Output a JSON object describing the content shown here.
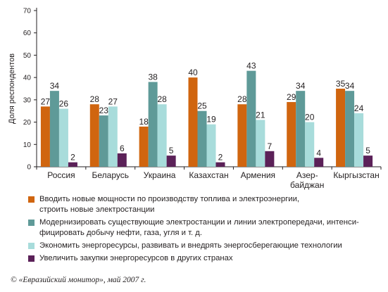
{
  "chart_data": {
    "type": "bar",
    "ylabel": "Доля респондентов",
    "ylim": [
      0,
      70
    ],
    "yticks": [
      0,
      10,
      20,
      30,
      40,
      50,
      60,
      70
    ],
    "grid": false,
    "categories": [
      [
        "Россия"
      ],
      [
        "Беларусь"
      ],
      [
        "Украина"
      ],
      [
        "Казахстан"
      ],
      [
        "Армения"
      ],
      [
        "Азер-",
        "байджан"
      ],
      [
        "Кыргызстан"
      ]
    ],
    "series": [
      {
        "name": "Вводить новые мощности по производству топлива и электроэнергии,\nстроить новые электростанции",
        "color": "#d0650f",
        "values": [
          27,
          28,
          18,
          40,
          28,
          29,
          35
        ]
      },
      {
        "name": "Модернизировать существующие электростанции и линии электропередачи, интенси-\nфицировать добычу нефти, газа, угля и т. д.",
        "color": "#5f9a98",
        "values": [
          34,
          23,
          38,
          25,
          43,
          34,
          34
        ]
      },
      {
        "name": "Экономить энергоресурсы, развивать и внедрять энергосберегающие технологии",
        "color": "#a8dcdb",
        "values": [
          26,
          27,
          28,
          19,
          21,
          20,
          24
        ]
      },
      {
        "name": "Увеличить закупки энергоресурсов в других странах",
        "color": "#5b2158",
        "values": [
          2,
          6,
          5,
          2,
          7,
          4,
          5
        ]
      }
    ]
  },
  "source": "© «Евразийский монитор», май 2007 г."
}
